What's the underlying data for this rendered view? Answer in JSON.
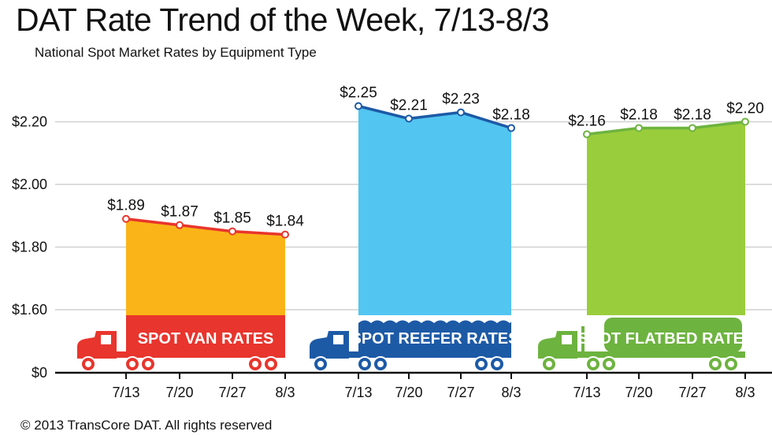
{
  "chart_data": {
    "type": "area",
    "title": "DAT Rate Trend of the Week, 7/13-8/3",
    "subtitle": "National Spot Market Rates by Equipment Type",
    "footer": "© 2013 TransCore DAT. All rights reserved",
    "ylabel": "",
    "xlabel": "",
    "y_ticks": [
      "$0",
      "$1.60",
      "$1.80",
      "$2.00",
      "$2.20"
    ],
    "y_tick_values": [
      0,
      1.6,
      1.8,
      2.0,
      2.2
    ],
    "ylim": [
      1.6,
      2.3
    ],
    "y_axis_break": true,
    "grid": true,
    "categories": [
      "7/13",
      "7/20",
      "7/27",
      "8/3"
    ],
    "series": [
      {
        "name": "SPOT VAN RATES",
        "values": [
          1.89,
          1.87,
          1.85,
          1.84
        ],
        "labels": [
          "$1.89",
          "$1.87",
          "$1.85",
          "$1.84"
        ],
        "fill": "#fbb417",
        "line": "#e8352d",
        "truck": "#e8352d"
      },
      {
        "name": "SPOT REEFER RATES",
        "values": [
          2.25,
          2.21,
          2.23,
          2.18
        ],
        "labels": [
          "$2.25",
          "$2.21",
          "$2.23",
          "$2.18"
        ],
        "fill": "#52c5f1",
        "line": "#1d5aa6",
        "truck": "#1d5aa6"
      },
      {
        "name": "SPOT FLATBED RATES",
        "values": [
          2.16,
          2.18,
          2.18,
          2.2
        ],
        "labels": [
          "$2.16",
          "$2.18",
          "$2.18",
          "$2.20"
        ],
        "fill": "#9acd3c",
        "line": "#6db33f",
        "truck": "#6db33f"
      }
    ]
  }
}
